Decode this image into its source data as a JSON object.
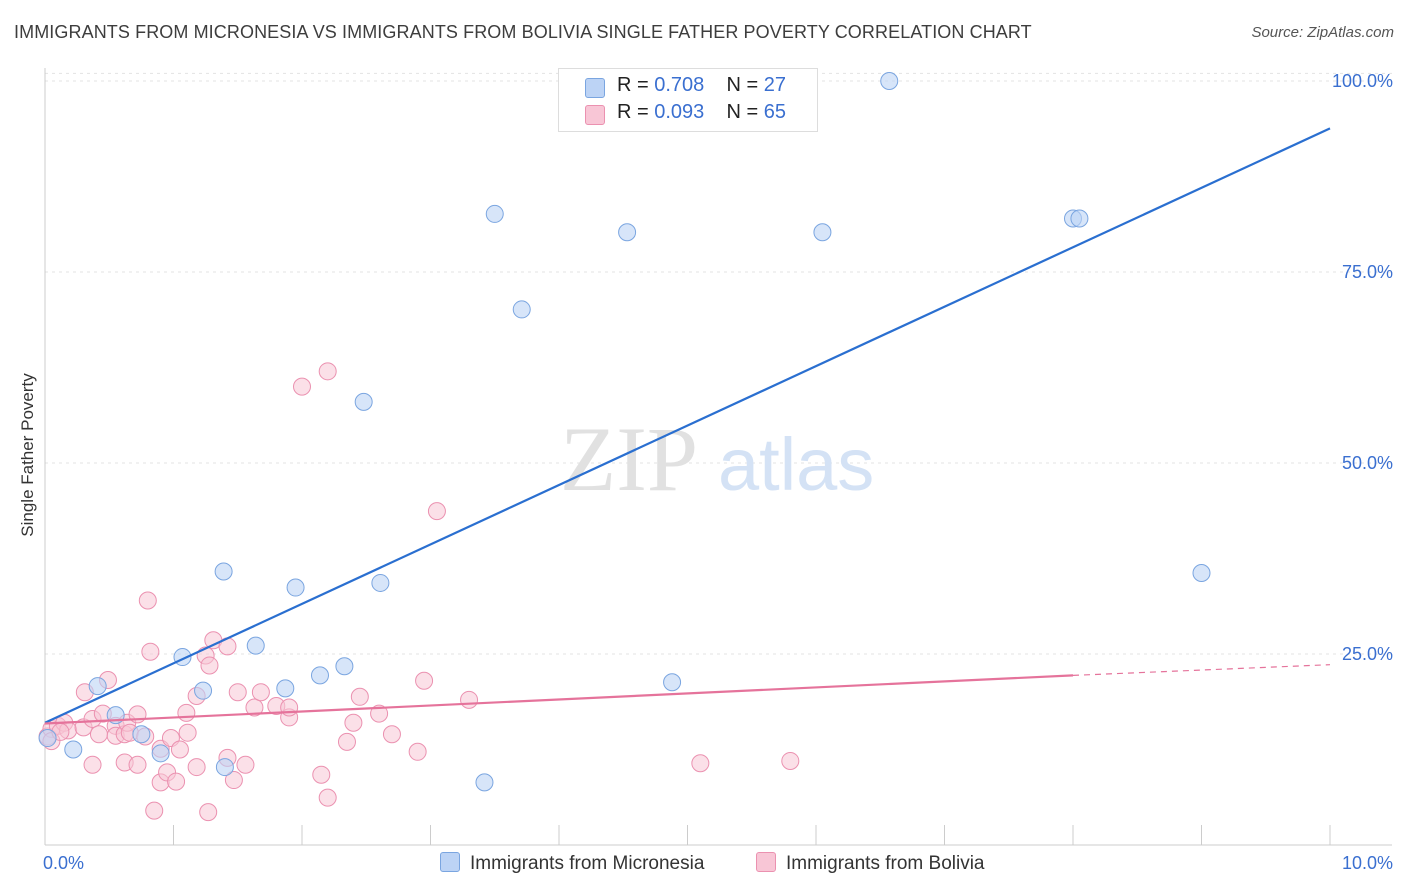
{
  "title": "IMMIGRANTS FROM MICRONESIA VS IMMIGRANTS FROM BOLIVIA SINGLE FATHER POVERTY CORRELATION CHART",
  "source": "Source: ZipAtlas.com",
  "watermark": {
    "zip": "ZIP",
    "atlas": "atlas"
  },
  "legend": {
    "micronesia": {
      "r_label": "R =",
      "r_value": "0.708",
      "n_label": "N =",
      "n_value": "27"
    },
    "bolivia": {
      "r_label": "R =",
      "r_value": "0.093",
      "n_label": "N =",
      "n_value": "65"
    }
  },
  "colors": {
    "micronesia_fill": "#bcd3f5",
    "micronesia_stroke": "#7aa5e0",
    "micronesia_line": "#2a6fd0",
    "bolivia_fill": "#f8c6d6",
    "bolivia_stroke": "#eb91b0",
    "bolivia_line": "#e5739b",
    "tick_label": "#3a6fd0"
  },
  "chart_data": {
    "type": "scatter",
    "title": "IMMIGRANTS FROM MICRONESIA VS IMMIGRANTS FROM BOLIVIA SINGLE FATHER POVERTY CORRELATION CHART",
    "xlabel": "",
    "ylabel": "Single Father Poverty",
    "xlim": [
      0,
      10
    ],
    "ylim": [
      0,
      101
    ],
    "x_tick_labels": [
      "0.0%",
      "10.0%"
    ],
    "y_ticks": [
      25,
      50,
      75,
      100
    ],
    "y_tick_labels": [
      "25.0%",
      "50.0%",
      "75.0%",
      "100.0%"
    ],
    "grid": true,
    "legend_position": "bottom-center",
    "series": [
      {
        "name": "Immigrants from Micronesia",
        "points": [
          [
            0.02,
            14.0
          ],
          [
            0.22,
            12.5
          ],
          [
            0.41,
            20.8
          ],
          [
            0.55,
            17.0
          ],
          [
            0.75,
            14.5
          ],
          [
            0.9,
            12.0
          ],
          [
            1.07,
            24.6
          ],
          [
            1.23,
            20.2
          ],
          [
            1.4,
            10.2
          ],
          [
            1.39,
            35.8
          ],
          [
            1.64,
            26.1
          ],
          [
            1.87,
            20.5
          ],
          [
            1.95,
            33.7
          ],
          [
            2.14,
            22.2
          ],
          [
            2.33,
            23.4
          ],
          [
            2.48,
            58.0
          ],
          [
            2.61,
            34.3
          ],
          [
            3.42,
            8.2
          ],
          [
            3.5,
            82.6
          ],
          [
            3.71,
            70.1
          ],
          [
            4.53,
            80.2
          ],
          [
            4.88,
            21.3
          ],
          [
            6.05,
            80.2
          ],
          [
            6.57,
            100.0
          ],
          [
            8.0,
            82.0
          ],
          [
            8.05,
            82.0
          ],
          [
            9.0,
            35.6
          ]
        ],
        "trend": {
          "x": [
            0.0,
            10.0
          ],
          "y": [
            16.0,
            93.8
          ]
        }
      },
      {
        "name": "Immigrants from Bolivia",
        "points": [
          [
            0.02,
            14.2
          ],
          [
            0.05,
            15.2
          ],
          [
            0.1,
            15.6
          ],
          [
            0.15,
            16.0
          ],
          [
            0.18,
            15.0
          ],
          [
            0.3,
            15.4
          ],
          [
            0.31,
            20.0
          ],
          [
            0.37,
            16.5
          ],
          [
            0.37,
            10.5
          ],
          [
            0.42,
            14.5
          ],
          [
            0.45,
            17.2
          ],
          [
            0.49,
            21.6
          ],
          [
            0.55,
            15.6
          ],
          [
            0.55,
            14.3
          ],
          [
            0.62,
            14.5
          ],
          [
            0.62,
            10.8
          ],
          [
            0.64,
            16.0
          ],
          [
            0.66,
            14.7
          ],
          [
            0.72,
            17.1
          ],
          [
            0.72,
            10.5
          ],
          [
            0.78,
            14.2
          ],
          [
            0.8,
            32.0
          ],
          [
            0.82,
            25.3
          ],
          [
            0.85,
            4.5
          ],
          [
            0.9,
            12.6
          ],
          [
            0.9,
            8.2
          ],
          [
            0.95,
            9.5
          ],
          [
            0.98,
            14.0
          ],
          [
            1.02,
            8.3
          ],
          [
            1.05,
            12.5
          ],
          [
            1.1,
            17.3
          ],
          [
            1.11,
            14.7
          ],
          [
            1.18,
            19.5
          ],
          [
            1.18,
            10.2
          ],
          [
            1.25,
            24.8
          ],
          [
            1.27,
            4.3
          ],
          [
            1.28,
            23.5
          ],
          [
            1.31,
            26.8
          ],
          [
            1.42,
            11.4
          ],
          [
            1.42,
            26.0
          ],
          [
            1.47,
            8.5
          ],
          [
            1.5,
            20.0
          ],
          [
            1.56,
            10.5
          ],
          [
            1.63,
            18.0
          ],
          [
            1.68,
            20.0
          ],
          [
            1.8,
            18.2
          ],
          [
            1.9,
            16.7
          ],
          [
            1.9,
            18.0
          ],
          [
            2.0,
            60.0
          ],
          [
            2.15,
            9.2
          ],
          [
            2.2,
            6.2
          ],
          [
            2.2,
            62.0
          ],
          [
            2.35,
            13.5
          ],
          [
            2.4,
            16.0
          ],
          [
            2.45,
            19.4
          ],
          [
            2.6,
            17.2
          ],
          [
            2.7,
            14.5
          ],
          [
            2.9,
            12.2
          ],
          [
            2.95,
            21.5
          ],
          [
            3.05,
            43.7
          ],
          [
            3.3,
            19.0
          ],
          [
            5.1,
            10.7
          ],
          [
            5.8,
            11.0
          ],
          [
            0.05,
            13.6
          ],
          [
            0.12,
            14.8
          ]
        ],
        "trend": {
          "x": [
            0.0,
            8.0
          ],
          "y": [
            15.9,
            22.2
          ],
          "dashed_to": [
            10.0,
            23.6
          ]
        }
      }
    ]
  }
}
